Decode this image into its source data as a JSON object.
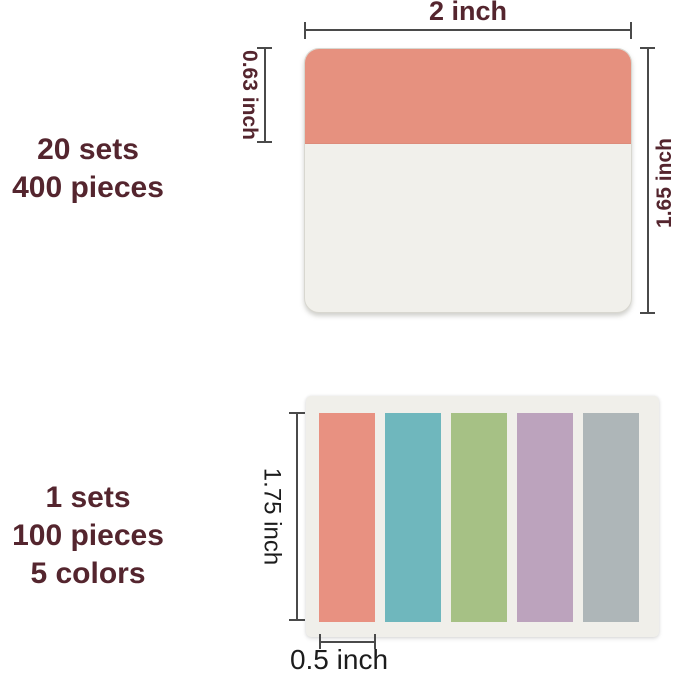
{
  "theme": {
    "accent": "#54252E",
    "ink": "#1C1C1C",
    "line": "#4A4A4A",
    "canvas_bg": "#FFFFFF"
  },
  "top_section": {
    "quantity_lines": [
      "20 sets",
      "400 pieces"
    ],
    "note": {
      "header_color": "#E6917F",
      "body_color": "#F1F0EB"
    },
    "dim_width_label": "2 inch",
    "dim_header_height_label": "0.63 inch",
    "dim_total_height_label": "1.65 inch"
  },
  "bottom_section": {
    "quantity_lines": [
      "1 sets",
      "100 pieces",
      "5 colors"
    ],
    "card": {
      "bg_color": "#F0EFEA",
      "tab_colors": [
        "#E89181",
        "#6FB7BD",
        "#A6C185",
        "#BCA3BD",
        "#AEB6B8"
      ]
    },
    "dim_tab_height_label": "1.75 inch",
    "dim_tab_width_label": "0.5 inch"
  }
}
